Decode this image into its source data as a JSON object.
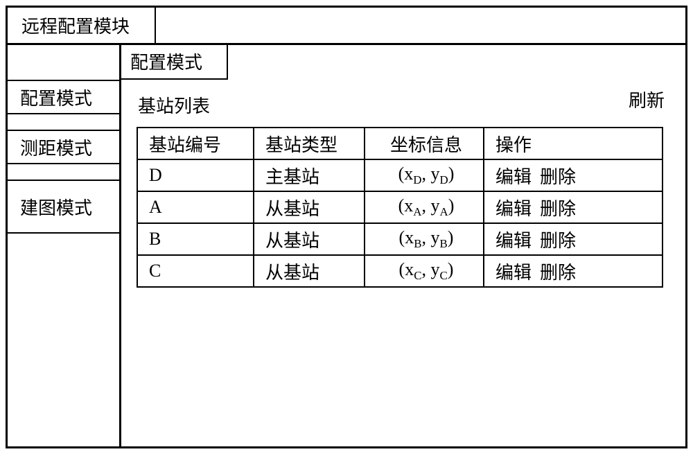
{
  "header": {
    "module_title": "远程配置模块"
  },
  "sidebar": {
    "items": [
      {
        "label": "配置模式"
      },
      {
        "label": "测距模式"
      },
      {
        "label": "建图模式"
      }
    ]
  },
  "content": {
    "active_tab_label": "配置模式",
    "list_title": "基站列表",
    "refresh_label": "刷新",
    "table": {
      "columns": [
        "基站编号",
        "基站类型",
        "坐标信息",
        "操作"
      ],
      "rows": [
        {
          "id": "D",
          "type": "主基站",
          "coord_x": "x",
          "coord_y": "y",
          "sub": "D"
        },
        {
          "id": "A",
          "type": "从基站",
          "coord_x": "x",
          "coord_y": "y",
          "sub": "A"
        },
        {
          "id": "B",
          "type": "从基站",
          "coord_x": "x",
          "coord_y": "y",
          "sub": "B"
        },
        {
          "id": "C",
          "type": "从基站",
          "coord_x": "x",
          "coord_y": "y",
          "sub": "C"
        }
      ],
      "edit_label": "编辑",
      "delete_label": "删除"
    }
  },
  "style": {
    "border_color": "#000000",
    "background_color": "#ffffff",
    "text_color": "#000000",
    "font_size_pt": 20
  }
}
